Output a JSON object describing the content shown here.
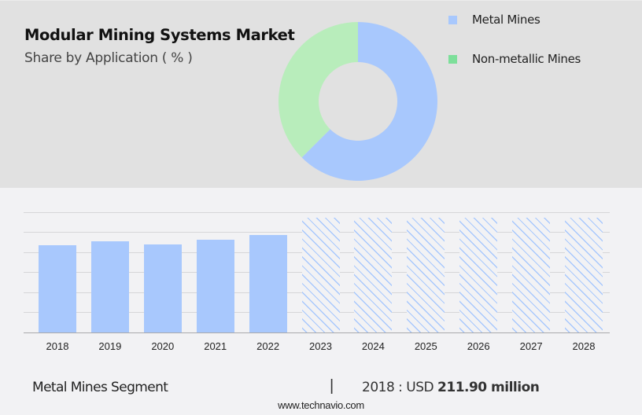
{
  "header": {
    "title": "Modular Mining Systems Market",
    "subtitle": "Share by Application ( % )"
  },
  "legend": {
    "items": [
      {
        "label": "Metal Mines",
        "color": "#a8c8fd"
      },
      {
        "label": "Non-metallic Mines",
        "color": "#7ddf9a"
      }
    ]
  },
  "footer": {
    "segment": "Metal Mines Segment",
    "separator": "|",
    "value_prefix": "2018 : USD",
    "value": "211.90 million",
    "website": "www.technavio.com"
  },
  "chart_data": [
    {
      "type": "pie",
      "title": "Modular Mining Systems Market",
      "subtitle": "Share by Application ( % )",
      "donut": true,
      "categories": [
        "Metal Mines",
        "Non-metallic Mines"
      ],
      "values": [
        62.5,
        37.5
      ],
      "colors": [
        "#a8c8fd",
        "#b8edbb"
      ],
      "legend_position": "right"
    },
    {
      "type": "bar",
      "title": "Metal Mines Segment",
      "categories": [
        "2018",
        "2019",
        "2020",
        "2021",
        "2022",
        "2023",
        "2024",
        "2025",
        "2026",
        "2027",
        "2028"
      ],
      "values": [
        211.9,
        221.8,
        215.5,
        225.4,
        237.7,
        null,
        null,
        null,
        null,
        null,
        null
      ],
      "forecast": [
        false,
        false,
        false,
        false,
        false,
        true,
        true,
        true,
        true,
        true,
        true
      ],
      "annotation": "2018 : USD 211.90 million",
      "xlabel": "",
      "ylabel": "",
      "grid": true,
      "yticks_visible": false,
      "bar_color": "#a8c8fd"
    }
  ]
}
